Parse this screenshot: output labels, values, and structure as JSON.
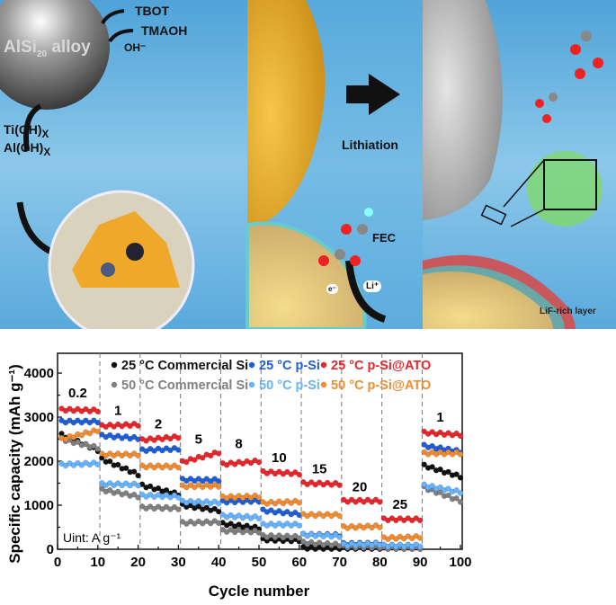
{
  "illustration": {
    "alloy_label_main": "AlSi",
    "alloy_label_sub": "20",
    "alloy_label_tail": " alloy",
    "reagents": [
      "TBOT",
      "TMAOH",
      "OH⁻"
    ],
    "hydroxides": [
      "Ti(OH)",
      "Al(OH)"
    ],
    "hydroxide_sub": "X",
    "lithiation": "Lithiation",
    "fec": "FEC",
    "electron": "e⁻",
    "lithium_ion": "Li⁺",
    "lif_layer": "LiF-rich layer"
  },
  "chart_data": {
    "type": "scatter",
    "xlabel": "Cycle number",
    "ylabel": "Specific capacity (mAh g⁻¹)",
    "xlim": [
      0,
      100
    ],
    "ylim": [
      0,
      4450
    ],
    "xticks": [
      0,
      10,
      20,
      30,
      40,
      50,
      60,
      70,
      80,
      90,
      100
    ],
    "yticks": [
      0,
      1000,
      2000,
      3000,
      4000
    ],
    "grid": false,
    "legend_placement": "top",
    "unit_note": "Uint: A g⁻¹",
    "segment_boundaries": [
      10.5,
      20.5,
      30.5,
      40.5,
      50.5,
      60.5,
      70.5,
      80.5,
      90.5
    ],
    "current_densities": [
      "0.2",
      "1",
      "2",
      "5",
      "8",
      "10",
      "15",
      "20",
      "25",
      "1"
    ],
    "series": [
      {
        "name": "25 °C Commercial Si",
        "color": "#111111",
        "segments": [
          [
            2600,
            2250
          ],
          [
            2050,
            1700
          ],
          [
            1450,
            1250
          ],
          [
            1000,
            880
          ],
          [
            580,
            480
          ],
          [
            220,
            200
          ],
          [
            30,
            20
          ],
          [
            20,
            20
          ],
          [
            10,
            10
          ],
          [
            1900,
            1650
          ]
        ]
      },
      {
        "name": "50 °C Commercial Si",
        "color": "#808080",
        "segments": [
          [
            2500,
            2300
          ],
          [
            1350,
            1200
          ],
          [
            950,
            930
          ],
          [
            600,
            620
          ],
          [
            420,
            400
          ],
          [
            300,
            280
          ],
          [
            150,
            100
          ],
          [
            60,
            50
          ],
          [
            30,
            30
          ],
          [
            1400,
            1100
          ]
        ]
      },
      {
        "name": "25 °C p-Si",
        "color": "#1f5fd6",
        "segments": [
          [
            2900,
            2900
          ],
          [
            2580,
            2520
          ],
          [
            2250,
            2280
          ],
          [
            1580,
            1570
          ],
          [
            1080,
            1100
          ],
          [
            880,
            800
          ],
          [
            330,
            320
          ],
          [
            120,
            130
          ],
          [
            80,
            80
          ],
          [
            2350,
            2220
          ]
        ]
      },
      {
        "name": "50 °C p-Si",
        "color": "#66b3ff",
        "segments": [
          [
            1920,
            1950
          ],
          [
            1480,
            1470
          ],
          [
            1220,
            1200
          ],
          [
            1080,
            1060
          ],
          [
            760,
            720
          ],
          [
            560,
            560
          ],
          [
            330,
            300
          ],
          [
            100,
            120
          ],
          [
            80,
            80
          ],
          [
            1450,
            1300
          ]
        ]
      },
      {
        "name": "25 °C p-Si@ATO",
        "color": "#e8262b",
        "segments": [
          [
            3170,
            3150
          ],
          [
            2800,
            2830
          ],
          [
            2480,
            2550
          ],
          [
            1980,
            2200
          ],
          [
            1930,
            2000
          ],
          [
            1750,
            1720
          ],
          [
            1500,
            1480
          ],
          [
            1100,
            1100
          ],
          [
            680,
            680
          ],
          [
            2650,
            2600
          ]
        ]
      },
      {
        "name": "50 °C p-Si@ATO",
        "color": "#f08c32",
        "segments": [
          [
            2500,
            2700
          ],
          [
            2150,
            2150
          ],
          [
            1880,
            1880
          ],
          [
            1430,
            1440
          ],
          [
            1180,
            1200
          ],
          [
            1050,
            1080
          ],
          [
            780,
            780
          ],
          [
            500,
            520
          ],
          [
            250,
            280
          ],
          [
            2180,
            2180
          ]
        ]
      }
    ]
  }
}
